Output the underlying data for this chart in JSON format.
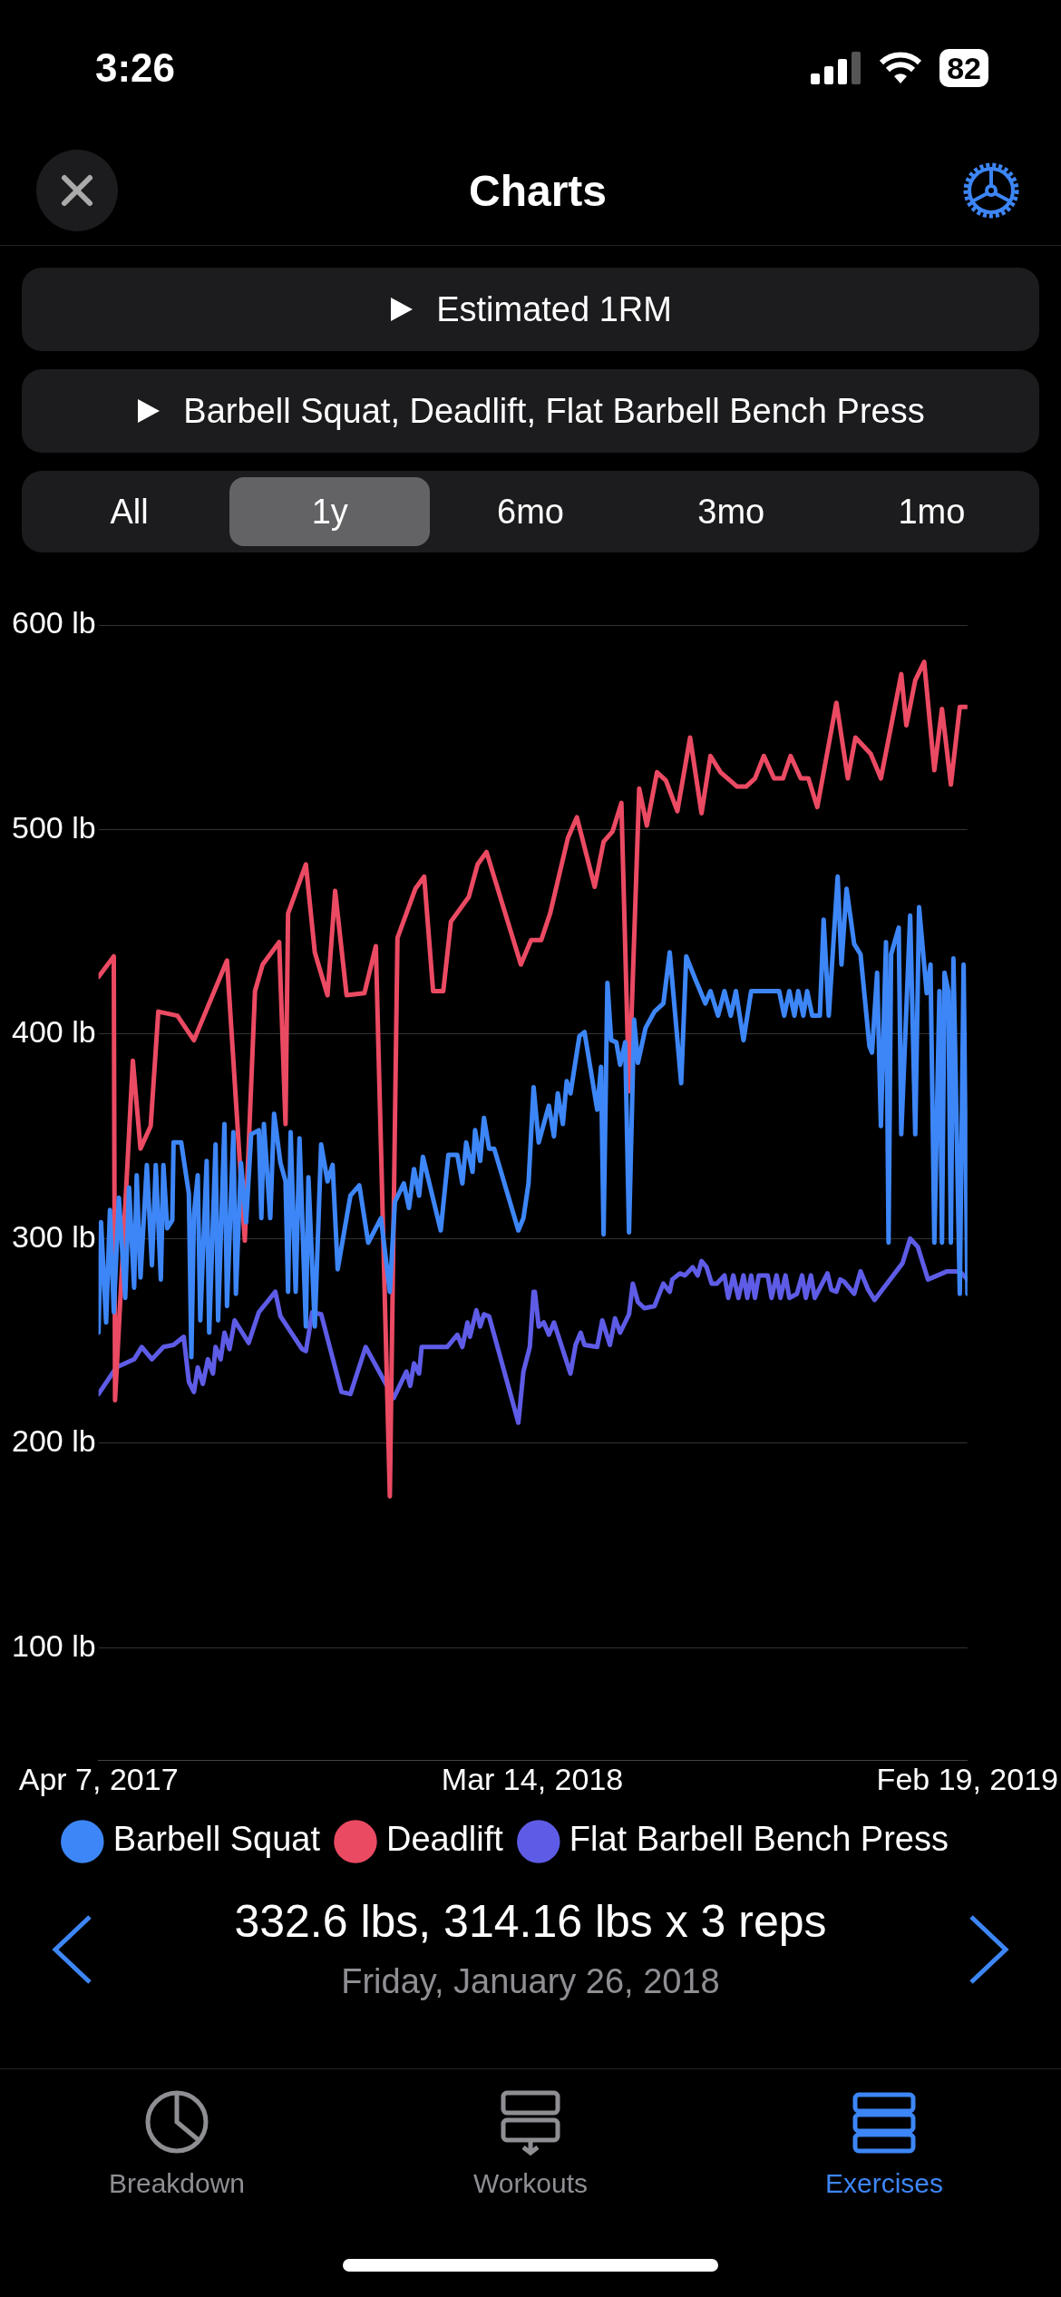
{
  "chart_data": {
    "type": "line",
    "title": "Estimated 1RM",
    "subtitle": "Barbell Squat, Deadlift, Flat Barbell Bench Press",
    "xlim": [
      "2017-04-07",
      "2019-02-19"
    ],
    "xticks": [
      {
        "value": "2017-04-07",
        "label": "Apr 7, 2017"
      },
      {
        "value": "2018-03-14",
        "label": "Mar 14, 2018"
      },
      {
        "value": "2019-02-19",
        "label": "Feb 19, 2019"
      }
    ],
    "ylim": [
      45,
      600
    ],
    "yticks": [
      {
        "value": 100,
        "label": "100 lb"
      },
      {
        "value": 200,
        "label": "200 lb"
      },
      {
        "value": 300,
        "label": "300 lb"
      },
      {
        "value": 400,
        "label": "400 lb"
      },
      {
        "value": 500,
        "label": "500 lb"
      },
      {
        "value": 600,
        "label": "600 lb"
      }
    ],
    "grid": "y",
    "legend": "bottom right",
    "marker": "none",
    "line_style": "solid",
    "annotations": [
      "3:26",
      "82",
      "Charts",
      "All",
      "1y",
      "6mo",
      "3mo",
      "1mo",
      "332.6 lbs, 314.16 lbs x 3 reps",
      "Friday, January 26, 2018",
      "Breakdown",
      "Workouts",
      "Exercises"
    ],
    "series": [
      {
        "name": "Barbell Squat",
        "color": "#3d86f7",
        "x": [
          "2017-04-07",
          "2017-04-09",
          "2017-04-13",
          "2017-04-16",
          "2017-04-19",
          "2017-04-23",
          "2017-04-28",
          "2017-05-01",
          "2017-05-05",
          "2017-05-07",
          "2017-05-10",
          "2017-05-15",
          "2017-05-19",
          "2017-05-22",
          "2017-05-26",
          "2017-05-28",
          "2017-05-31",
          "2017-06-04",
          "2017-06-05",
          "2017-06-11",
          "2017-06-17",
          "2017-06-19",
          "2017-06-21",
          "2017-06-24",
          "2017-06-26",
          "2017-07-01",
          "2017-07-03",
          "2017-07-08",
          "2017-07-10",
          "2017-07-15",
          "2017-07-17",
          "2017-07-22",
          "2017-07-24",
          "2017-07-28",
          "2017-08-01",
          "2017-08-05",
          "2017-08-11",
          "2017-08-13",
          "2017-08-15",
          "2017-08-20",
          "2017-08-23",
          "2017-08-28",
          "2017-09-01",
          "2017-09-03",
          "2017-09-05",
          "2017-09-09",
          "2017-09-12",
          "2017-09-17",
          "2017-09-19",
          "2017-09-24",
          "2017-09-29",
          "2017-10-04",
          "2017-10-08",
          "2017-10-12",
          "2017-10-22",
          "2017-10-29",
          "2017-11-05",
          "2017-11-15",
          "2017-11-22",
          "2017-11-26",
          "2017-12-03",
          "2017-12-07",
          "2017-12-11",
          "2017-12-15",
          "2017-12-18",
          "2018-01-01",
          "2018-01-07",
          "2018-01-14",
          "2018-01-18",
          "2018-01-21",
          "2018-01-26",
          "2018-01-28",
          "2018-02-01",
          "2018-02-04",
          "2018-02-08",
          "2018-02-12",
          "2018-03-03",
          "2018-03-07",
          "2018-03-11",
          "2018-03-15",
          "2018-03-19",
          "2018-03-27",
          "2018-03-31",
          "2018-04-03",
          "2018-04-07",
          "2018-04-10",
          "2018-04-13",
          "2018-04-20",
          "2018-04-24",
          "2018-05-04",
          "2018-05-07",
          "2018-05-09",
          "2018-05-12",
          "2018-05-15",
          "2018-05-19",
          "2018-05-22",
          "2018-05-26",
          "2018-05-29",
          "2018-06-02",
          "2018-06-05",
          "2018-06-11",
          "2018-06-18",
          "2018-06-25",
          "2018-06-30",
          "2018-07-09",
          "2018-07-13",
          "2018-07-20",
          "2018-07-28",
          "2018-08-01",
          "2018-08-07",
          "2018-08-12",
          "2018-08-17",
          "2018-08-21",
          "2018-08-27",
          "2018-09-02",
          "2018-09-24",
          "2018-09-28",
          "2018-10-02",
          "2018-10-06",
          "2018-10-09",
          "2018-10-13",
          "2018-10-16",
          "2018-10-20",
          "2018-10-26",
          "2018-10-29",
          "2018-11-02",
          "2018-11-09",
          "2018-11-12",
          "2018-11-16",
          "2018-11-22",
          "2018-11-27",
          "2018-12-04",
          "2018-12-06",
          "2018-12-10",
          "2018-12-13",
          "2018-12-17",
          "2018-12-19",
          "2018-12-21",
          "2018-12-27",
          "2018-12-29",
          "2019-01-05",
          "2019-01-09",
          "2019-01-12",
          "2019-01-18",
          "2019-01-21",
          "2019-01-24",
          "2019-01-28",
          "2019-01-30",
          "2019-02-01",
          "2019-02-04",
          "2019-02-06",
          "2019-02-08",
          "2019-02-13",
          "2019-02-16",
          "2019-02-19"
        ],
        "values": [
          254,
          308,
          259,
          314,
          264,
          320,
          271,
          325,
          276,
          331,
          281,
          336,
          287,
          336,
          280,
          336,
          305,
          309,
          347,
          347,
          322,
          242,
          312,
          331,
          260,
          338,
          254,
          346,
          260,
          356,
          267,
          352,
          273,
          337,
          308,
          351,
          353,
          310,
          356,
          310,
          361,
          337,
          328,
          274,
          352,
          274,
          349,
          257,
          330,
          257,
          346,
          328,
          336,
          285,
          321,
          326,
          298,
          310,
          274,
          318,
          327,
          315,
          334,
          321,
          340,
          304,
          341,
          341,
          327,
          347,
          332.6,
          353,
          338,
          359,
          344,
          344,
          304,
          310,
          327,
          374,
          347,
          365,
          350,
          371,
          356,
          377,
          371,
          399,
          401,
          363,
          384,
          302,
          425,
          397,
          396,
          385,
          396,
          303,
          407,
          386,
          403,
          411,
          415,
          440,
          376,
          438,
          427,
          415,
          421,
          409,
          421,
          409,
          421,
          397,
          421,
          421,
          409,
          421,
          409,
          421,
          409,
          421,
          409,
          409,
          456,
          409,
          477,
          434,
          471,
          444,
          439,
          394,
          391,
          430,
          355,
          445,
          298,
          439,
          452,
          351,
          458,
          351,
          462,
          420,
          434,
          298,
          421,
          298,
          430,
          421,
          298,
          437,
          273,
          434,
          273
        ]
      },
      {
        "name": "Deadlift",
        "color": "#eb4a63",
        "x": [
          "2017-04-07",
          "2017-04-19",
          "2017-04-20",
          "2017-05-04",
          "2017-05-10",
          "2017-05-18",
          "2017-05-24",
          "2017-06-08",
          "2017-06-21",
          "2017-07-17",
          "2017-07-31",
          "2017-08-08",
          "2017-08-14",
          "2017-08-27",
          "2017-09-01",
          "2017-09-03",
          "2017-09-17",
          "2017-09-24",
          "2017-10-04",
          "2017-10-10",
          "2017-10-19",
          "2017-11-02",
          "2017-11-11",
          "2017-11-22",
          "2017-11-28",
          "2017-12-12",
          "2017-12-19",
          "2017-12-26",
          "2018-01-03",
          "2018-01-09",
          "2018-01-23",
          "2018-01-30",
          "2018-02-06",
          "2018-03-05",
          "2018-03-13",
          "2018-03-21",
          "2018-03-28",
          "2018-04-11",
          "2018-04-18",
          "2018-05-02",
          "2018-05-09",
          "2018-05-16",
          "2018-05-23",
          "2018-05-29",
          "2018-06-06",
          "2018-06-12",
          "2018-06-20",
          "2018-06-27",
          "2018-07-06",
          "2018-07-16",
          "2018-07-25",
          "2018-08-01",
          "2018-08-09",
          "2018-08-22",
          "2018-08-29",
          "2018-09-05",
          "2018-09-12",
          "2018-09-20",
          "2018-09-27",
          "2018-10-03",
          "2018-10-11",
          "2018-10-17",
          "2018-10-24",
          "2018-11-08",
          "2018-11-17",
          "2018-11-23",
          "2018-12-05",
          "2018-12-13",
          "2018-12-29",
          "2019-01-02",
          "2019-01-09",
          "2019-01-16",
          "2019-01-24",
          "2019-01-30",
          "2019-02-06",
          "2019-02-13",
          "2019-02-19"
        ],
        "values": [
          428,
          438,
          221,
          387,
          344,
          355,
          411,
          409,
          397,
          436,
          299,
          421,
          434,
          445,
          356,
          459,
          483,
          440,
          419,
          470,
          419,
          420,
          443,
          174,
          447,
          471,
          477,
          421,
          421,
          455,
          467,
          483,
          489,
          434,
          446,
          446,
          459,
          496,
          506,
          472,
          494,
          499,
          513,
          372,
          520,
          502,
          528,
          524,
          509,
          545,
          508,
          536,
          528,
          521,
          521,
          525,
          536,
          525,
          525,
          536,
          525,
          525,
          511,
          562,
          525,
          545,
          537,
          525,
          576,
          551,
          573,
          582,
          529,
          559,
          522,
          560,
          560
        ]
      },
      {
        "name": "Flat Barbell Bench Press",
        "color": "#5e5ce6",
        "x": [
          "2017-04-07",
          "2017-04-21",
          "2017-05-05",
          "2017-05-11",
          "2017-05-19",
          "2017-05-28",
          "2017-06-05",
          "2017-06-13",
          "2017-06-17",
          "2017-06-21",
          "2017-06-24",
          "2017-06-28",
          "2017-07-02",
          "2017-07-06",
          "2017-07-08",
          "2017-07-12",
          "2017-07-15",
          "2017-07-19",
          "2017-07-23",
          "2017-08-03",
          "2017-08-11",
          "2017-08-24",
          "2017-08-28",
          "2017-09-14",
          "2017-09-17",
          "2017-09-22",
          "2017-09-29",
          "2017-10-15",
          "2017-10-22",
          "2017-11-03",
          "2017-11-25",
          "2017-12-05",
          "2017-12-08",
          "2017-12-11",
          "2017-12-15",
          "2017-12-17",
          "2018-01-06",
          "2018-01-14",
          "2018-01-18",
          "2018-01-22",
          "2018-01-24",
          "2018-01-29",
          "2018-02-01",
          "2018-02-04",
          "2018-02-08",
          "2018-03-03",
          "2018-03-07",
          "2018-03-12",
          "2018-03-15",
          "2018-03-16",
          "2018-03-19",
          "2018-03-23",
          "2018-03-27",
          "2018-03-31",
          "2018-04-13",
          "2018-04-17",
          "2018-04-21",
          "2018-04-24",
          "2018-05-04",
          "2018-05-08",
          "2018-05-14",
          "2018-05-18",
          "2018-05-22",
          "2018-05-29",
          "2018-06-01",
          "2018-06-05",
          "2018-06-10",
          "2018-06-18",
          "2018-06-25",
          "2018-06-30",
          "2018-07-02",
          "2018-07-08",
          "2018-07-12",
          "2018-07-18",
          "2018-07-22",
          "2018-07-25",
          "2018-07-29",
          "2018-08-02",
          "2018-08-06",
          "2018-08-12",
          "2018-08-15",
          "2018-08-19",
          "2018-08-23",
          "2018-08-27",
          "2018-08-30",
          "2018-09-02",
          "2018-09-05",
          "2018-09-08",
          "2018-09-15",
          "2018-09-18",
          "2018-09-22",
          "2018-09-25",
          "2018-09-29",
          "2018-10-02",
          "2018-10-08",
          "2018-10-12",
          "2018-10-15",
          "2018-10-19",
          "2018-10-22",
          "2018-11-01",
          "2018-11-04",
          "2018-11-08",
          "2018-11-11",
          "2018-11-14",
          "2018-11-22",
          "2018-11-27",
          "2018-12-03",
          "2018-12-08",
          "2018-12-30",
          "2019-01-05",
          "2019-01-11",
          "2019-01-19",
          "2019-02-03",
          "2019-02-13",
          "2019-02-19"
        ],
        "values": [
          224,
          237,
          241,
          247,
          241,
          247,
          248,
          252,
          230,
          225,
          237,
          229,
          241,
          234,
          247,
          241,
          254,
          246,
          260,
          249,
          264,
          274,
          262,
          246,
          245,
          264,
          263,
          225,
          224,
          247,
          222,
          235,
          228,
          239,
          234,
          247,
          247,
          253,
          247,
          259,
          252,
          265,
          257,
          263,
          262,
          210,
          235,
          247,
          274,
          274,
          257,
          259,
          253,
          259,
          234,
          248,
          254,
          248,
          247,
          260,
          248,
          261,
          254,
          263,
          278,
          269,
          266,
          267,
          278,
          274,
          280,
          283,
          282,
          286,
          282,
          289,
          286,
          278,
          278,
          282,
          271,
          282,
          271,
          282,
          271,
          282,
          271,
          282,
          282,
          271,
          282,
          271,
          282,
          271,
          273,
          282,
          271,
          282,
          271,
          283,
          275,
          274,
          280,
          279,
          273,
          284,
          275,
          270,
          288,
          300,
          296,
          280,
          284,
          284,
          280
        ]
      }
    ]
  }
}
